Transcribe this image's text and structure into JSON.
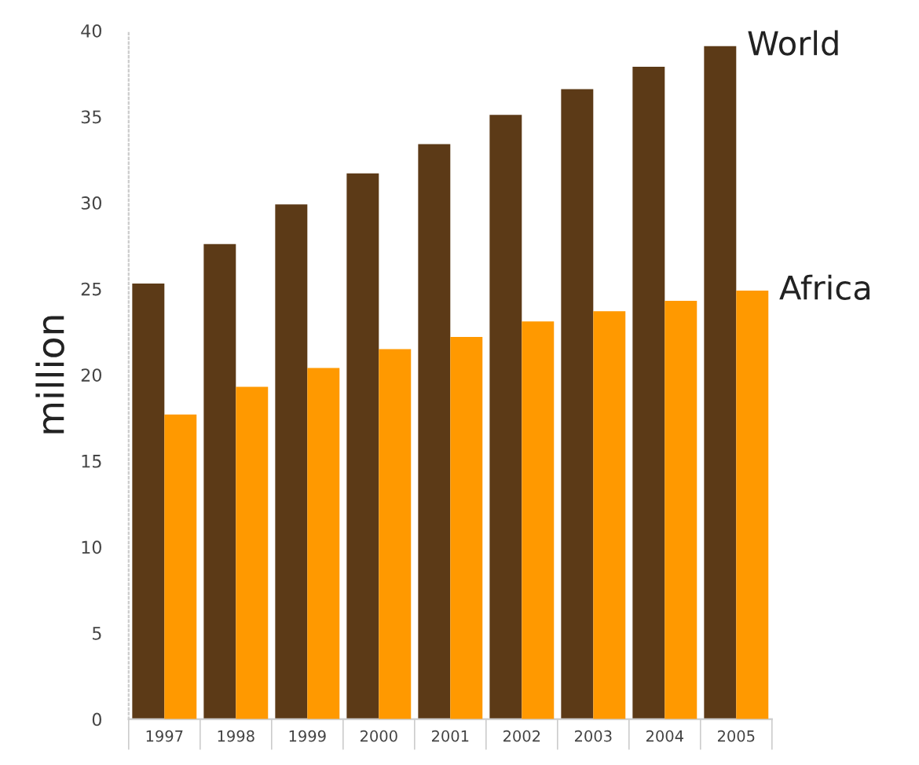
{
  "chart_data": {
    "type": "bar",
    "ylabel": "million",
    "categories": [
      "1997",
      "1998",
      "1999",
      "2000",
      "2001",
      "2002",
      "2003",
      "2004",
      "2005"
    ],
    "series": [
      {
        "name": "World",
        "color": "#5c3a17",
        "values": [
          25.3,
          27.6,
          29.9,
          31.7,
          33.4,
          35.1,
          36.6,
          37.9,
          39.1
        ]
      },
      {
        "name": "Africa",
        "color": "#ff9900",
        "values": [
          17.7,
          19.3,
          20.4,
          21.5,
          22.2,
          23.1,
          23.7,
          24.3,
          24.9
        ]
      }
    ],
    "ylim": [
      0,
      40
    ],
    "yticks": [
      0,
      5,
      10,
      15,
      20,
      25,
      30,
      35,
      40
    ],
    "grid": false,
    "legend": false
  }
}
